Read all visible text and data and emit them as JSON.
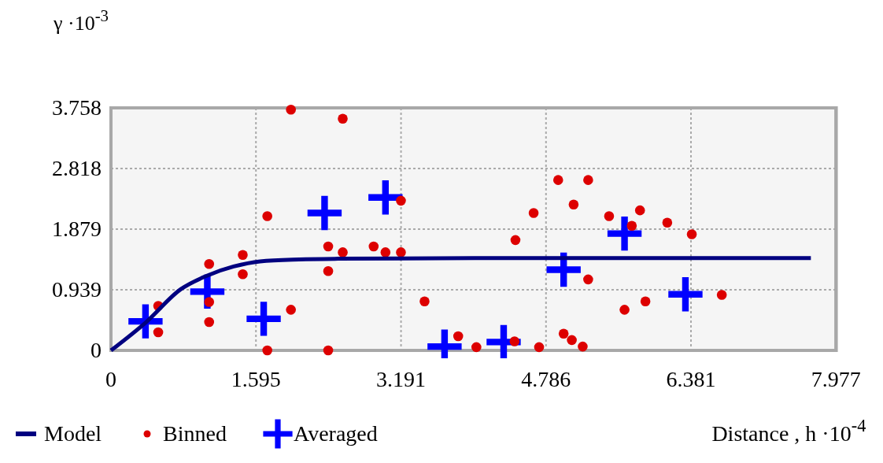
{
  "chart_data": {
    "type": "scatter",
    "ylabel": "γ ·10$^{-3}$",
    "xlabel": "Distance , h ·10$^{-4}$",
    "xlim": [
      0,
      7.977
    ],
    "xticks": [
      0,
      1.595,
      3.191,
      4.786,
      6.381,
      7.977
    ],
    "ylim": [
      0,
      3.758
    ],
    "yticks": [
      0,
      0.939,
      1.879,
      2.818,
      3.758
    ],
    "grid": true,
    "legend": "bottom left",
    "series": [
      {
        "name": "Model",
        "type": "line",
        "color": "#000080",
        "x": [
          0,
          0.38,
          0.77,
          1.06,
          1.35,
          1.64,
          2.07,
          2.5,
          4,
          7.7
        ],
        "values": [
          0,
          0.43,
          0.95,
          1.16,
          1.3,
          1.38,
          1.41,
          1.42,
          1.43,
          1.43
        ]
      },
      {
        "name": "Binned",
        "marker": "circle",
        "color": "#dd0000",
        "x": [
          1.98,
          2.55,
          1.72,
          3.19,
          2.39,
          2.55,
          2.89,
          3.02,
          3.19,
          2.39,
          1.45,
          1.45,
          1.08,
          1.08,
          1.08,
          0.52,
          0.52,
          1.98,
          1.72,
          2.39,
          3.45,
          3.82,
          4.02,
          4.44,
          4.71,
          4.45,
          4.65,
          4.92,
          5.25,
          5.09,
          5.48,
          5.82,
          5.73,
          6.12,
          6.39,
          5.25,
          5.65,
          5.88,
          6.72,
          4.98,
          5.07,
          5.19
        ],
        "values": [
          3.73,
          3.59,
          2.08,
          2.32,
          1.61,
          1.52,
          1.61,
          1.52,
          1.52,
          1.23,
          1.48,
          1.18,
          1.34,
          0.75,
          0.44,
          0.69,
          0.28,
          0.63,
          0,
          0,
          0.76,
          0.22,
          0.05,
          0.14,
          0.05,
          1.71,
          2.13,
          2.64,
          2.64,
          2.26,
          2.08,
          2.17,
          1.93,
          1.98,
          1.8,
          1.1,
          0.63,
          0.76,
          0.86,
          0.26,
          0.16,
          0.06
        ]
      },
      {
        "name": "Averaged",
        "marker": "cross",
        "color": "#0000ff",
        "x": [
          0.38,
          1.06,
          1.68,
          2.35,
          3.02,
          3.67,
          4.32,
          4.98,
          5.65,
          6.32
        ],
        "values": [
          0.45,
          0.91,
          0.49,
          2.13,
          2.37,
          0.06,
          0.13,
          1.25,
          1.81,
          0.87
        ]
      }
    ]
  }
}
